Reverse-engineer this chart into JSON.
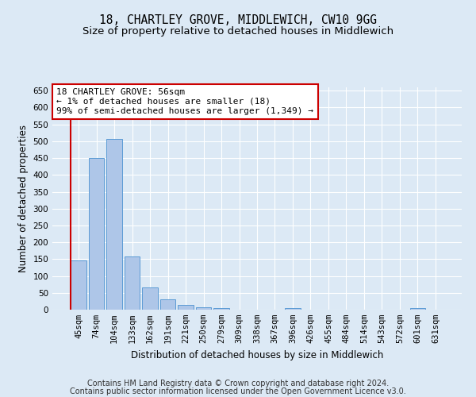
{
  "title": "18, CHARTLEY GROVE, MIDDLEWICH, CW10 9GG",
  "subtitle": "Size of property relative to detached houses in Middlewich",
  "xlabel": "Distribution of detached houses by size in Middlewich",
  "ylabel": "Number of detached properties",
  "footer_line1": "Contains HM Land Registry data © Crown copyright and database right 2024.",
  "footer_line2": "Contains public sector information licensed under the Open Government Licence v3.0.",
  "categories": [
    "45sqm",
    "74sqm",
    "104sqm",
    "133sqm",
    "162sqm",
    "191sqm",
    "221sqm",
    "250sqm",
    "279sqm",
    "309sqm",
    "338sqm",
    "367sqm",
    "396sqm",
    "426sqm",
    "455sqm",
    "484sqm",
    "514sqm",
    "543sqm",
    "572sqm",
    "601sqm",
    "631sqm"
  ],
  "values": [
    145,
    450,
    507,
    158,
    65,
    30,
    13,
    8,
    5,
    0,
    0,
    0,
    5,
    0,
    0,
    0,
    0,
    0,
    0,
    5,
    0
  ],
  "bar_color": "#aec6e8",
  "bar_edge_color": "#5b9bd5",
  "highlight_bar_index": 0,
  "highlight_line_color": "#cc0000",
  "annotation_text": "18 CHARTLEY GROVE: 56sqm\n← 1% of detached houses are smaller (18)\n99% of semi-detached houses are larger (1,349) →",
  "annotation_box_color": "#ffffff",
  "annotation_box_edge_color": "#cc0000",
  "ylim": [
    0,
    660
  ],
  "yticks": [
    0,
    50,
    100,
    150,
    200,
    250,
    300,
    350,
    400,
    450,
    500,
    550,
    600,
    650
  ],
  "background_color": "#dce9f5",
  "plot_background_color": "#dce9f5",
  "title_fontsize": 10.5,
  "subtitle_fontsize": 9.5,
  "annotation_fontsize": 8,
  "ylabel_fontsize": 8.5,
  "xlabel_fontsize": 8.5,
  "footer_fontsize": 7,
  "tick_fontsize": 7.5
}
